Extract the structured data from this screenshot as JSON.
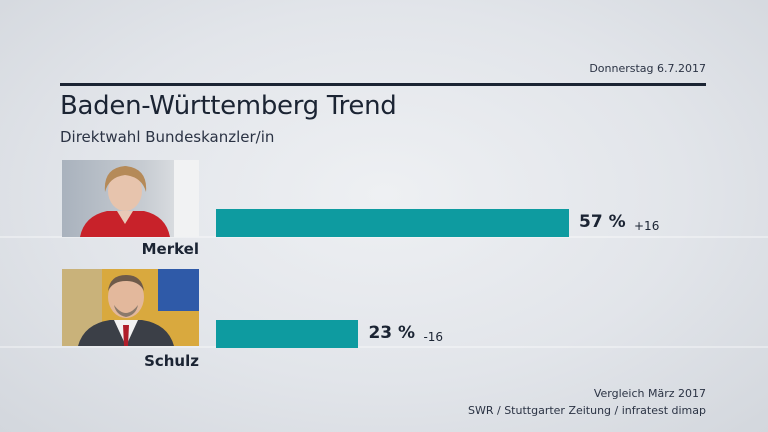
{
  "header": {
    "date": "Donnerstag 6.7.2017",
    "title": "Baden-Württemberg Trend",
    "subtitle": "Direktwahl Bundeskanzler/in"
  },
  "colors": {
    "bar": "#0e9ba0",
    "text": "#1b2433"
  },
  "chart_data": {
    "type": "bar",
    "orientation": "horizontal",
    "title": "Baden-Württemberg Trend",
    "subtitle": "Direktwahl Bundeskanzler/in",
    "categories": [
      "Merkel",
      "Schulz"
    ],
    "values": [
      57,
      23
    ],
    "value_labels": [
      "57 %",
      "23 %"
    ],
    "changes": [
      16,
      -16
    ],
    "change_labels": [
      "+16",
      "-16"
    ],
    "xlim": [
      0,
      100
    ],
    "grid": false,
    "legend": "none"
  },
  "candidates": [
    {
      "name": "Merkel",
      "photo_icon": "portrait-merkel-icon"
    },
    {
      "name": "Schulz",
      "photo_icon": "portrait-schulz-icon"
    }
  ],
  "footer": {
    "comparison": "Vergleich März 2017",
    "source": "SWR / Stuttgarter Zeitung / infratest dimap"
  }
}
